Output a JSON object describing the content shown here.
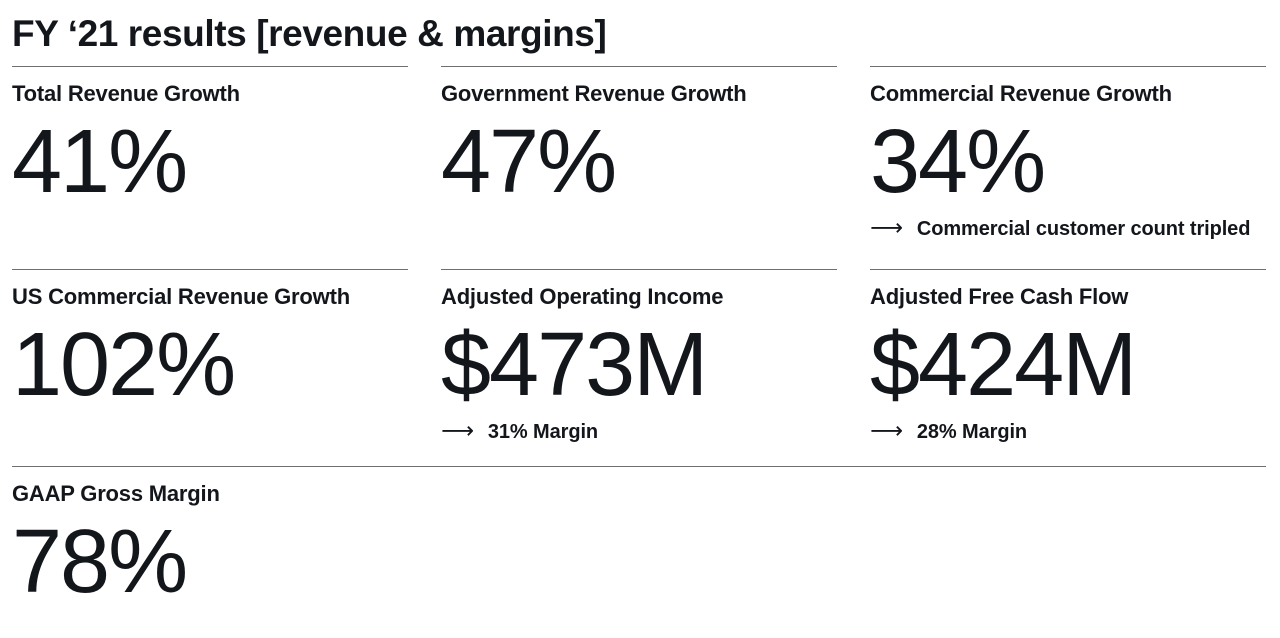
{
  "page": {
    "title": "FY ‘21 results [revenue & margins]"
  },
  "icons": {
    "long_right_arrow": "⟶"
  },
  "colors": {
    "text": "#13161b",
    "divider": "#6f6f6f",
    "background": "#ffffff"
  },
  "metrics": [
    {
      "label": "Total Revenue Growth",
      "value": "41%"
    },
    {
      "label": "Government Revenue Growth",
      "value": "47%"
    },
    {
      "label": "Commercial Revenue Growth",
      "value": "34%",
      "note": "Commercial customer count tripled"
    },
    {
      "label": "US Commercial Revenue Growth",
      "value": "102%"
    },
    {
      "label": "Adjusted Operating Income",
      "value": "$473M",
      "note": "31% Margin"
    },
    {
      "label": "Adjusted Free Cash Flow",
      "value": "$424M",
      "note": "28% Margin"
    },
    {
      "label": "GAAP Gross Margin",
      "value": "78%"
    }
  ]
}
